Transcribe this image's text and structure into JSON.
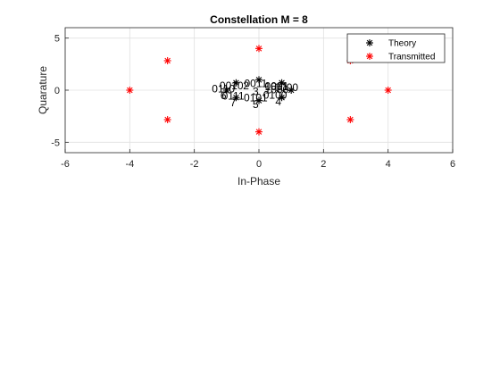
{
  "chart_data": {
    "type": "scatter",
    "title": "Constellation M = 8",
    "xlabel": "In-Phase",
    "ylabel": "Quarature",
    "xlim": [
      -6,
      6
    ],
    "ylim": [
      -6,
      6
    ],
    "x_ticks": [
      -6,
      -4,
      -2,
      0,
      2,
      4,
      6
    ],
    "y_ticks": [
      -5,
      0,
      5
    ],
    "grid": true,
    "legend_position": "top-right",
    "series": [
      {
        "name": "Theory",
        "color": "#000000",
        "marker": "asterisk",
        "points": [
          {
            "x": 1.0,
            "y": 0.0
          },
          {
            "x": 0.7071,
            "y": 0.7071
          },
          {
            "x": 0.0,
            "y": 1.0
          },
          {
            "x": -0.7071,
            "y": 0.7071
          },
          {
            "x": -1.0,
            "y": 0.0
          },
          {
            "x": -0.7071,
            "y": -0.7071
          },
          {
            "x": 0.0,
            "y": -1.0
          },
          {
            "x": 0.7071,
            "y": -0.7071
          }
        ]
      },
      {
        "name": "Transmitted",
        "color": "#ff0000",
        "marker": "asterisk",
        "points": [
          {
            "x": 4.0,
            "y": 0.0
          },
          {
            "x": 2.83,
            "y": 2.83
          },
          {
            "x": 0.0,
            "y": 4.0
          },
          {
            "x": -2.83,
            "y": 2.83
          },
          {
            "x": -4.0,
            "y": 0.0
          },
          {
            "x": -2.83,
            "y": -2.83
          },
          {
            "x": 0.0,
            "y": -4.0
          },
          {
            "x": 2.83,
            "y": -2.83
          }
        ]
      }
    ],
    "annotations": [
      {
        "text": "0000",
        "x": 0.85,
        "y": -0.1
      },
      {
        "text": "1000",
        "x": 0.55,
        "y": -0.3
      },
      {
        "text": "0001",
        "x": 0.55,
        "y": 0.05
      },
      {
        "text": "1001",
        "x": 0.55,
        "y": 0.0
      },
      {
        "text": "0011",
        "x": -0.1,
        "y": 0.3
      },
      {
        "text": "3",
        "x": -0.1,
        "y": -0.45
      },
      {
        "text": "0010",
        "x": -0.85,
        "y": 0.1
      },
      {
        "text": "2",
        "x": -0.4,
        "y": 0.1
      },
      {
        "text": "0110",
        "x": -1.1,
        "y": -0.2
      },
      {
        "text": "6",
        "x": -1.1,
        "y": -0.85
      },
      {
        "text": "0111",
        "x": -0.8,
        "y": -0.9
      },
      {
        "text": "7",
        "x": -0.8,
        "y": -1.55
      },
      {
        "text": "0101",
        "x": -0.1,
        "y": -1.05
      },
      {
        "text": "5",
        "x": -0.1,
        "y": -1.7
      },
      {
        "text": "0100",
        "x": 0.5,
        "y": -0.8
      },
      {
        "text": "4",
        "x": 0.6,
        "y": -1.45
      }
    ]
  }
}
